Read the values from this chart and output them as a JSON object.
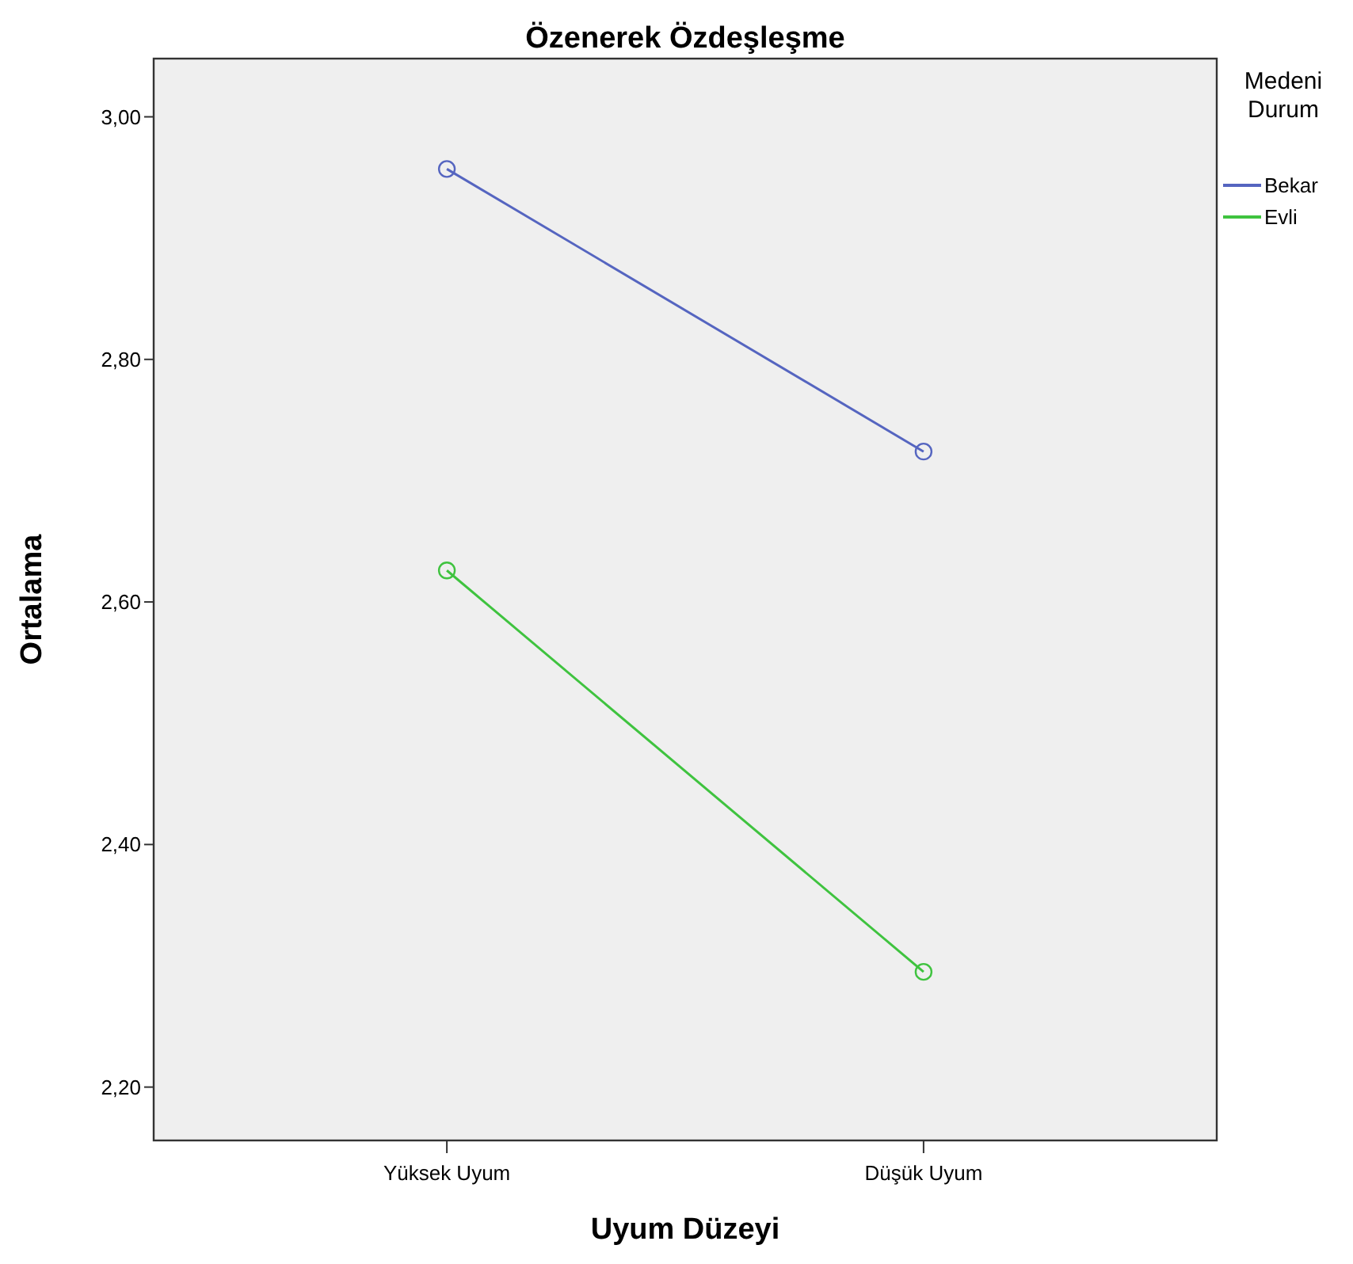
{
  "chart_data": {
    "type": "line",
    "title": "Özenerek Özdeşleşme",
    "xlabel": "Uyum Düzeyi",
    "ylabel": "Ortalama",
    "legend_title": "Medeni Durum",
    "categories": [
      "Yüksek Uyum",
      "Düşük Uyum"
    ],
    "series": [
      {
        "name": "Bekar",
        "color": "#5565c0",
        "values": [
          2.957,
          2.724
        ]
      },
      {
        "name": "Evli",
        "color": "#3fc33f",
        "values": [
          2.626,
          2.295
        ]
      }
    ],
    "ylim": [
      2.156,
      3.048
    ],
    "yticks": [
      {
        "value": 2.2,
        "label": "2,20"
      },
      {
        "value": 2.4,
        "label": "2,40"
      },
      {
        "value": 2.6,
        "label": "2,60"
      },
      {
        "value": 2.8,
        "label": "2,80"
      },
      {
        "value": 3.0,
        "label": "3,00"
      }
    ],
    "grid": false,
    "legend": "right",
    "marker": "circle",
    "line_style": "solid"
  }
}
